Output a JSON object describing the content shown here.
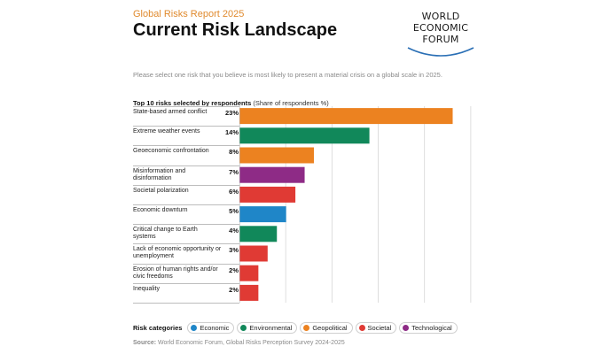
{
  "header": {
    "report_label": "Global Risks Report 2025",
    "title": "Current Risk Landscape",
    "logo": {
      "line1": "WORLD",
      "line2": "ECONOMIC",
      "line3": "FORUM"
    }
  },
  "prompt": "Please select one risk that you believe is most likely to present a material crisis on a global scale in 2025.",
  "chart_header": {
    "title": "Top 10 risks selected by respondents",
    "subtitle": "(Share of respondents %)"
  },
  "colors": {
    "Economic": "#1f86c8",
    "Environmental": "#11885a",
    "Geopolitical": "#ec8220",
    "Societal": "#e03a34",
    "Technological": "#8e2b86"
  },
  "chart_data": {
    "type": "bar",
    "orientation": "horizontal",
    "title": "Top 10 risks selected by respondents",
    "subtitle": "(Share of respondents %)",
    "xlim": [
      0,
      25
    ],
    "grid": true,
    "legend_position": "bottom-left",
    "categories": [
      {
        "label": "State-based armed conflict",
        "value": 23,
        "value_label": "23%",
        "category": "Geopolitical"
      },
      {
        "label": "Extreme weather events",
        "value": 14,
        "value_label": "14%",
        "category": "Environmental"
      },
      {
        "label": "Geoeconomic confrontation",
        "value": 8,
        "value_label": "8%",
        "category": "Geopolitical"
      },
      {
        "label": "Misinformation and disinformation",
        "value": 7,
        "value_label": "7%",
        "category": "Technological"
      },
      {
        "label": "Societal polarization",
        "value": 6,
        "value_label": "6%",
        "category": "Societal"
      },
      {
        "label": "Economic downturn",
        "value": 5,
        "value_label": "5%",
        "category": "Economic"
      },
      {
        "label": "Critical change to Earth systems",
        "value": 4,
        "value_label": "4%",
        "category": "Environmental"
      },
      {
        "label": "Lack of economic opportunity or unemployment",
        "value": 3,
        "value_label": "3%",
        "category": "Societal"
      },
      {
        "label": "Erosion of human rights and/or civic freedoms",
        "value": 2,
        "value_label": "2%",
        "category": "Societal"
      },
      {
        "label": "Inequality",
        "value": 2,
        "value_label": "2%",
        "category": "Societal"
      }
    ]
  },
  "legend": {
    "title": "Risk categories",
    "items": [
      "Economic",
      "Environmental",
      "Geopolitical",
      "Societal",
      "Technological"
    ]
  },
  "source": {
    "label": "Source:",
    "text": "World Economic Forum, Global Risks Perception Survey 2024-2025"
  }
}
